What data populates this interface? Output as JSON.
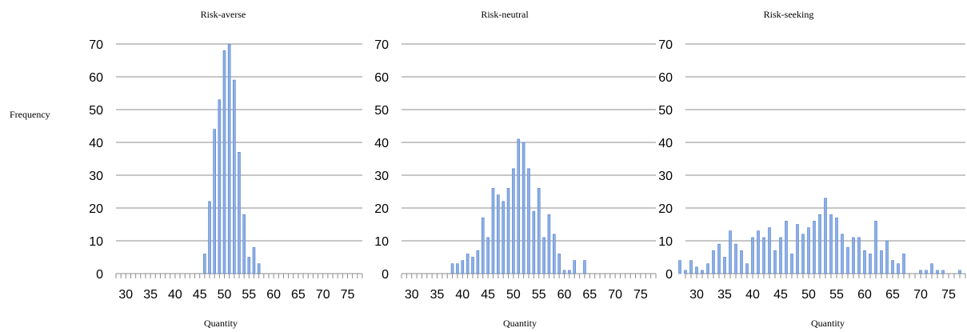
{
  "ylabel": "Frequency",
  "colors": {
    "bar": "#8fb0e6",
    "bar_edge": "#4f7fce",
    "grid": "#8c8c8c"
  },
  "chart_data": [
    {
      "type": "bar",
      "title": "Risk-averse",
      "xlabel": "Quantity",
      "ylabel": "Frequency",
      "ylim": [
        0,
        70
      ],
      "yticks": [
        "0",
        "10",
        "20",
        "30",
        "40",
        "50",
        "60",
        "70"
      ],
      "xtick_labels": [
        "30",
        "35",
        "40",
        "45",
        "50",
        "55",
        "60",
        "65",
        "70",
        "75"
      ],
      "x": [
        46,
        47,
        48,
        49,
        50,
        51,
        52,
        53,
        54,
        55,
        56,
        57
      ],
      "values": [
        6,
        22,
        44,
        53,
        68,
        70,
        59,
        37,
        18,
        5,
        8,
        3
      ]
    },
    {
      "type": "bar",
      "title": "Risk-neutral",
      "xlabel": "Quantity",
      "ylabel": "Frequency",
      "ylim": [
        0,
        70
      ],
      "yticks": [
        "0",
        "10",
        "20",
        "30",
        "40",
        "50",
        "60",
        "70"
      ],
      "xtick_labels": [
        "30",
        "35",
        "40",
        "45",
        "50",
        "55",
        "60",
        "65",
        "70",
        "75"
      ],
      "x": [
        38,
        39,
        40,
        41,
        42,
        43,
        44,
        45,
        46,
        47,
        48,
        49,
        50,
        51,
        52,
        53,
        54,
        55,
        56,
        57,
        58,
        59,
        60,
        61,
        62,
        64
      ],
      "values": [
        3,
        3,
        4,
        6,
        5,
        7,
        17,
        11,
        26,
        24,
        22,
        26,
        32,
        41,
        40,
        32,
        19,
        26,
        11,
        18,
        12,
        6,
        1,
        1,
        4,
        4
      ]
    },
    {
      "type": "bar",
      "title": "Risk-seeking",
      "xlabel": "Quantity",
      "ylabel": "Frequency",
      "ylim": [
        0,
        70
      ],
      "yticks": [
        "0",
        "10",
        "20",
        "30",
        "40",
        "50",
        "60",
        "70"
      ],
      "xtick_labels": [
        "30",
        "35",
        "40",
        "45",
        "50",
        "55",
        "60",
        "65",
        "70",
        "75"
      ],
      "x": [
        27,
        28,
        29,
        30,
        31,
        32,
        33,
        34,
        35,
        36,
        37,
        38,
        39,
        40,
        41,
        42,
        43,
        44,
        45,
        46,
        47,
        48,
        49,
        50,
        51,
        52,
        53,
        54,
        55,
        56,
        57,
        58,
        59,
        60,
        61,
        62,
        63,
        64,
        65,
        66,
        67,
        68,
        70,
        71,
        72,
        73,
        74,
        75,
        77
      ],
      "values": [
        4,
        1,
        4,
        2,
        1,
        3,
        7,
        9,
        5,
        13,
        9,
        7,
        3,
        11,
        13,
        11,
        14,
        7,
        11,
        16,
        6,
        15,
        12,
        14,
        16,
        18,
        23,
        18,
        17,
        12,
        8,
        11,
        11,
        7,
        6,
        16,
        7,
        10,
        4,
        3,
        6,
        0,
        1,
        1,
        3,
        1,
        1,
        0,
        1
      ]
    }
  ]
}
